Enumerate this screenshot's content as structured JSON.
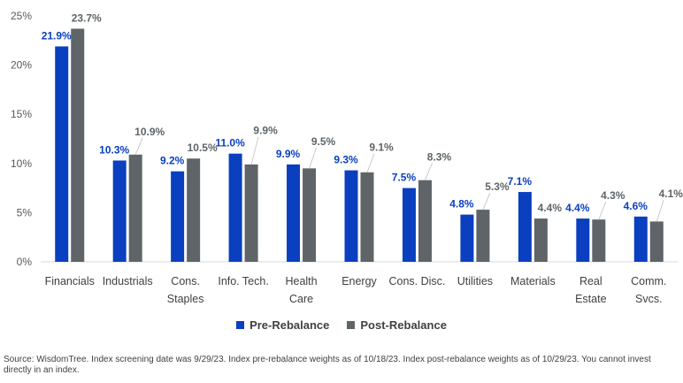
{
  "chart_data": {
    "type": "bar",
    "categories": [
      [
        "Financials"
      ],
      [
        "Industrials"
      ],
      [
        "Cons.",
        "Staples"
      ],
      [
        "Info. Tech."
      ],
      [
        "Health",
        "Care"
      ],
      [
        "Energy"
      ],
      [
        "Cons. Disc."
      ],
      [
        "Utilities"
      ],
      [
        "Materials"
      ],
      [
        "Real",
        "Estate"
      ],
      [
        "Comm.",
        "Svcs."
      ]
    ],
    "series": [
      {
        "name": "Pre-Rebalance",
        "color": "#0a3fbf",
        "values": [
          21.9,
          10.3,
          9.2,
          11.0,
          9.9,
          9.3,
          7.5,
          4.8,
          7.1,
          4.4,
          4.6
        ],
        "labels": [
          "21.9%",
          "10.3%",
          "9.2%",
          "11.0%",
          "9.9%",
          "9.3%",
          "7.5%",
          "4.8%",
          "7.1%",
          "4.4%",
          "4.6%"
        ]
      },
      {
        "name": "Post-Rebalance",
        "color": "#5f6468",
        "values": [
          23.7,
          10.9,
          10.5,
          9.9,
          9.5,
          9.1,
          8.3,
          5.3,
          4.4,
          4.3,
          4.1
        ],
        "labels": [
          "23.7%",
          "10.9%",
          "10.5%",
          "9.9%",
          "9.5%",
          "9.1%",
          "8.3%",
          "5.3%",
          "4.4%",
          "4.3%",
          "4.1%"
        ]
      }
    ],
    "ylim": [
      0,
      25
    ],
    "yticks": [
      "0%",
      "5%",
      "10%",
      "15%",
      "20%",
      "25%"
    ],
    "grid": false,
    "legend_position": "bottom-center"
  },
  "legend": {
    "pre_label": "Pre-Rebalance",
    "post_label": "Post-Rebalance"
  },
  "source": "Source: WisdomTree. Index screening date was 9/29/23. Index pre-rebalance weights as of 10/18/23. Index post-rebalance weights as of 10/29/23. You cannot invest directly in an index."
}
